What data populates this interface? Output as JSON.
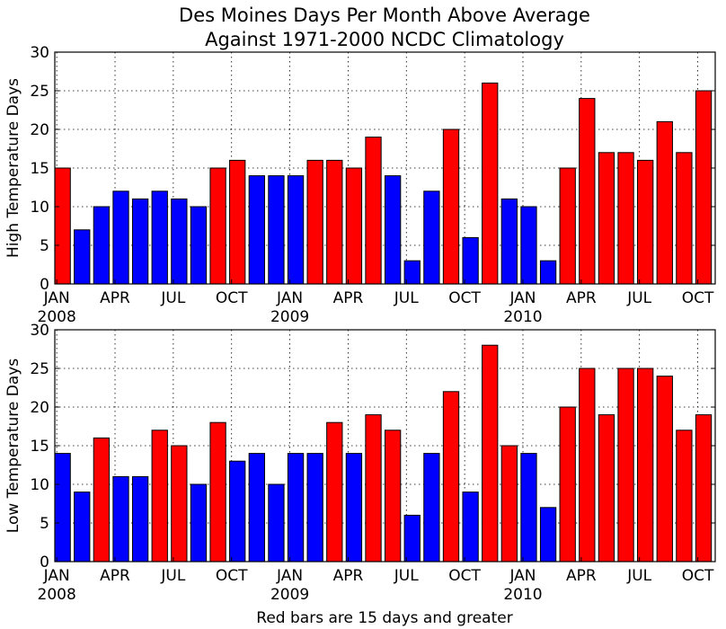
{
  "title_lines": [
    "Des Moines Days Per Month Above Average",
    "Against 1971-2000 NCDC Climatology"
  ],
  "caption": "Red bars are 15 days and greater",
  "colors": {
    "above_threshold": "#ff0000",
    "below_threshold": "#0000ff"
  },
  "threshold": 15,
  "chart_data": [
    {
      "type": "bar",
      "ylabel": "High Temperature Days",
      "ylim": [
        0,
        30
      ],
      "yticks": [
        0,
        5,
        10,
        15,
        20,
        25,
        30
      ],
      "grid": true,
      "categories": [
        "2008-01",
        "2008-02",
        "2008-03",
        "2008-04",
        "2008-05",
        "2008-06",
        "2008-07",
        "2008-08",
        "2008-09",
        "2008-10",
        "2008-11",
        "2008-12",
        "2009-01",
        "2009-02",
        "2009-03",
        "2009-04",
        "2009-05",
        "2009-06",
        "2009-07",
        "2009-08",
        "2009-09",
        "2009-10",
        "2009-11",
        "2009-12",
        "2010-01",
        "2010-02",
        "2010-03",
        "2010-04",
        "2010-05",
        "2010-06",
        "2010-07",
        "2010-08",
        "2010-09",
        "2010-10"
      ],
      "values": [
        15,
        7,
        10,
        12,
        11,
        12,
        11,
        10,
        15,
        16,
        14,
        14,
        14,
        16,
        16,
        15,
        19,
        14,
        3,
        12,
        20,
        6,
        26,
        11,
        10,
        3,
        15,
        24,
        17,
        17,
        16,
        21,
        17,
        25
      ],
      "xtick_labels": [
        {
          "month": "JAN",
          "year": "2008",
          "index": 0
        },
        {
          "month": "APR",
          "year": "",
          "index": 3
        },
        {
          "month": "JUL",
          "year": "",
          "index": 6
        },
        {
          "month": "OCT",
          "year": "",
          "index": 9
        },
        {
          "month": "JAN",
          "year": "2009",
          "index": 12
        },
        {
          "month": "APR",
          "year": "",
          "index": 15
        },
        {
          "month": "JUL",
          "year": "",
          "index": 18
        },
        {
          "month": "OCT",
          "year": "",
          "index": 21
        },
        {
          "month": "JAN",
          "year": "2010",
          "index": 24
        },
        {
          "month": "APR",
          "year": "",
          "index": 27
        },
        {
          "month": "JUL",
          "year": "",
          "index": 30
        },
        {
          "month": "OCT",
          "year": "",
          "index": 33
        }
      ]
    },
    {
      "type": "bar",
      "ylabel": "Low Temperature Days",
      "ylim": [
        0,
        30
      ],
      "yticks": [
        0,
        5,
        10,
        15,
        20,
        25,
        30
      ],
      "grid": true,
      "categories": [
        "2008-01",
        "2008-02",
        "2008-03",
        "2008-04",
        "2008-05",
        "2008-06",
        "2008-07",
        "2008-08",
        "2008-09",
        "2008-10",
        "2008-11",
        "2008-12",
        "2009-01",
        "2009-02",
        "2009-03",
        "2009-04",
        "2009-05",
        "2009-06",
        "2009-07",
        "2009-08",
        "2009-09",
        "2009-10",
        "2009-11",
        "2009-12",
        "2010-01",
        "2010-02",
        "2010-03",
        "2010-04",
        "2010-05",
        "2010-06",
        "2010-07",
        "2010-08",
        "2010-09",
        "2010-10"
      ],
      "values": [
        14,
        9,
        16,
        11,
        11,
        17,
        15,
        10,
        18,
        13,
        14,
        10,
        14,
        14,
        18,
        14,
        19,
        17,
        6,
        14,
        22,
        9,
        28,
        15,
        14,
        7,
        20,
        25,
        19,
        25,
        25,
        24,
        17,
        19
      ],
      "xtick_labels": [
        {
          "month": "JAN",
          "year": "2008",
          "index": 0
        },
        {
          "month": "APR",
          "year": "",
          "index": 3
        },
        {
          "month": "JUL",
          "year": "",
          "index": 6
        },
        {
          "month": "OCT",
          "year": "",
          "index": 9
        },
        {
          "month": "JAN",
          "year": "2009",
          "index": 12
        },
        {
          "month": "APR",
          "year": "",
          "index": 15
        },
        {
          "month": "JUL",
          "year": "",
          "index": 18
        },
        {
          "month": "OCT",
          "year": "",
          "index": 21
        },
        {
          "month": "JAN",
          "year": "2010",
          "index": 24
        },
        {
          "month": "APR",
          "year": "",
          "index": 27
        },
        {
          "month": "JUL",
          "year": "",
          "index": 30
        },
        {
          "month": "OCT",
          "year": "",
          "index": 33
        }
      ]
    }
  ]
}
